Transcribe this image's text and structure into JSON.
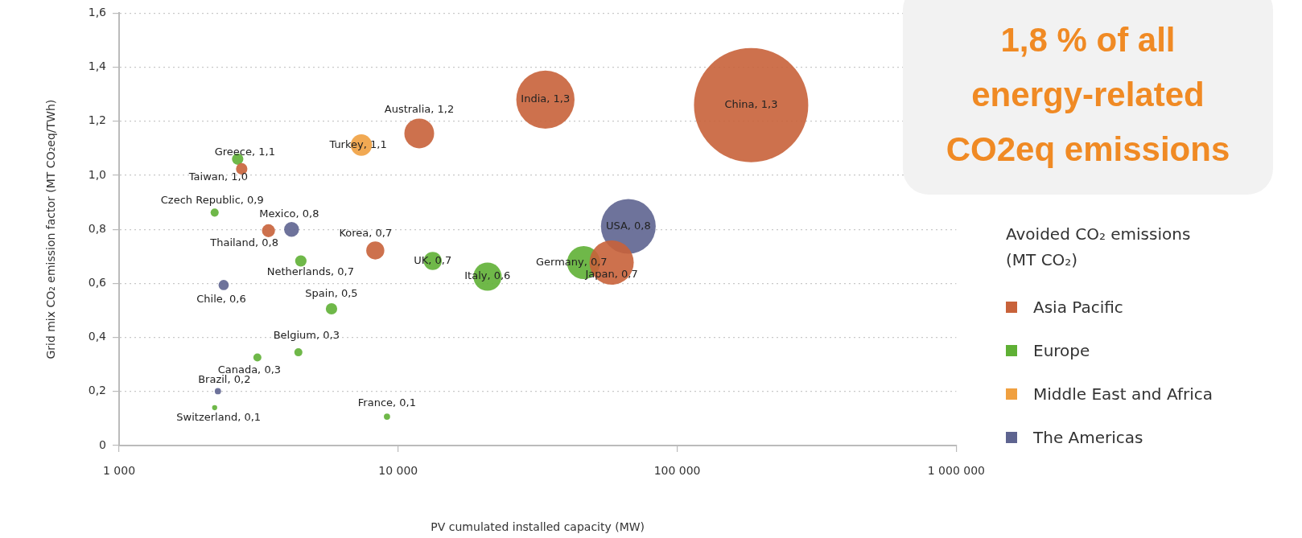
{
  "chart_data": {
    "type": "bubble",
    "xlabel": "PV cumulated installed capacity (MW)",
    "ylabel": "Grid mix CO₂ emission factor (MT CO₂eq/TWh)",
    "legend_title": "Avoided CO₂ emissions (MT CO₂)",
    "annotations": [
      "1,8 % of all energy-related CO2eq emissions"
    ],
    "log": "x",
    "grid": "y",
    "legend": "right",
    "xlim": [
      1000,
      1000000
    ],
    "ylim": [
      0,
      1.6
    ],
    "xticks": [
      {
        "value": 1000,
        "label": "1 000"
      },
      {
        "value": 10000,
        "label": "10 000"
      },
      {
        "value": 100000,
        "label": "100 000"
      },
      {
        "value": 1000000,
        "label": "1 000 000"
      }
    ],
    "yticks": [
      0,
      {
        "value": 0.2,
        "label": "0,2"
      },
      {
        "value": 0.4,
        "label": "0,4"
      },
      {
        "value": 0.6,
        "label": "0,6"
      },
      {
        "value": 0.8,
        "label": "0,8"
      },
      {
        "value": 1.0,
        "label": "1,0"
      },
      {
        "value": 1.2,
        "label": "1,2"
      },
      {
        "value": 1.4,
        "label": "1,4"
      },
      {
        "value": 1.6,
        "label": "1,6"
      }
    ],
    "series": [
      {
        "name": "Asia Pacific",
        "color": "#c8623a",
        "x": [
          184000,
          33700,
          11900,
          2750,
          3430,
          8280,
          58200
        ],
        "values": [
          1.26,
          1.28,
          1.155,
          1.024,
          0.795,
          0.722,
          0.677
        ],
        "sizes": [
          1,
          0.26,
          0.068,
          0.01,
          0.013,
          0.025,
          0.15
        ],
        "value_labels": [
          "China, 1,3",
          "India, 1,3",
          "Australia, 1,2",
          "Taiwan, 1,0",
          "Thailand, 0,8",
          "Korea, 0,7",
          "Japan, 0,7"
        ]
      },
      {
        "name": "Europe",
        "color": "#5fb035",
        "x": [
          2660,
          2200,
          4480,
          13300,
          20900,
          46200,
          5770,
          4390,
          3130,
          2200,
          9120
        ],
        "values": [
          1.06,
          0.862,
          0.683,
          0.683,
          0.625,
          0.677,
          0.506,
          0.345,
          0.326,
          0.14,
          0.107
        ],
        "sizes": [
          0.01,
          0.005,
          0.01,
          0.025,
          0.061,
          0.084,
          0.01,
          0.005,
          0.005,
          0.002,
          0.003
        ],
        "value_labels": [
          "Greece, 1,1",
          "Czech Republic, 0,9",
          "Netherlands, 0,7",
          "UK, 0,7",
          "Italy, 0,6",
          "Germany, 0,7",
          "Spain, 0,5",
          "Belgium, 0,3",
          "Canada, 0,3",
          "Switzerland, 0,1",
          "France, 0,1"
        ]
      },
      {
        "name": "Middle East and Africa",
        "color": "#f0a040",
        "x": [
          7380
        ],
        "values": [
          1.112
        ],
        "sizes": [
          0.035
        ],
        "value_labels": [
          "Turkey, 1,1"
        ]
      },
      {
        "name": "The Americas",
        "color": "#5e6490",
        "x": [
          66800,
          4150,
          2370,
          2260
        ],
        "values": [
          0.811,
          0.8,
          0.594,
          0.201
        ],
        "sizes": [
          0.23,
          0.017,
          0.008,
          0.003
        ],
        "value_labels": [
          "USA, 0,8",
          "Mexico, 0,8",
          "Chile, 0,6",
          "Brazil, 0,2"
        ]
      }
    ]
  }
}
